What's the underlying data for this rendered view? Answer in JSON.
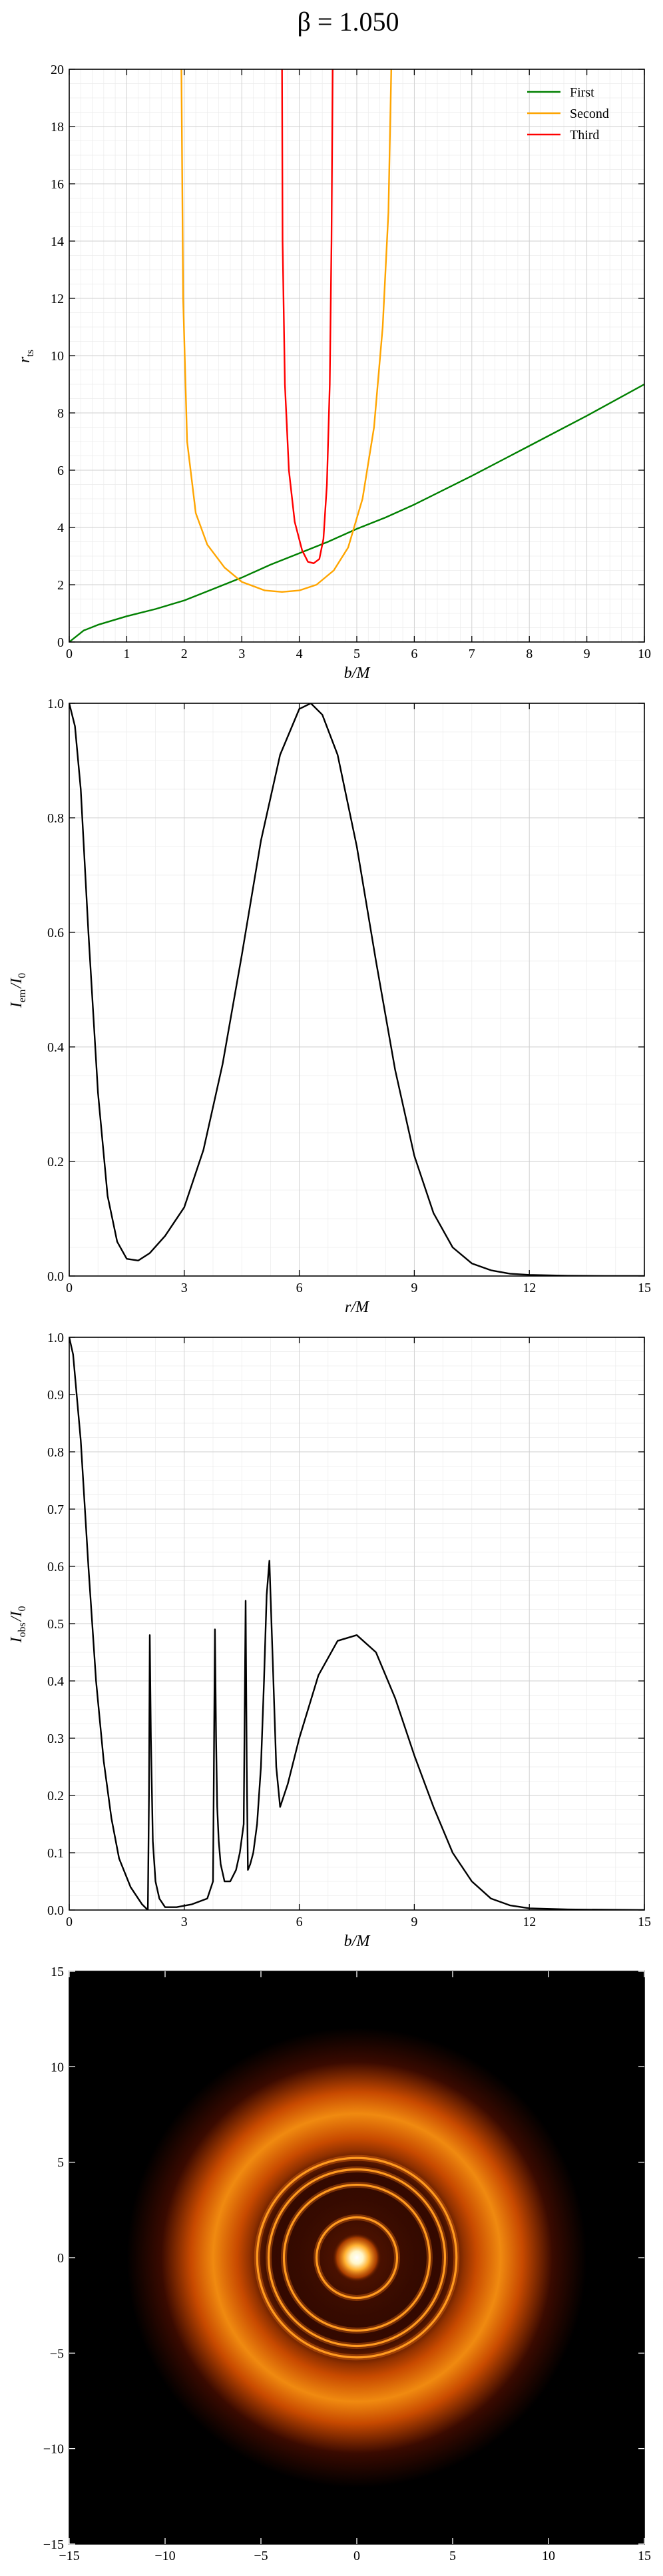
{
  "figure": {
    "title": "β = 1.050"
  },
  "chart_data": [
    {
      "type": "line",
      "xlabel": "b/M",
      "ylabel": "r_ts",
      "xlim": [
        0,
        10
      ],
      "ylim": [
        0,
        20
      ],
      "xticks": [
        "0",
        "1",
        "2",
        "3",
        "4",
        "5",
        "6",
        "7",
        "8",
        "9",
        "10"
      ],
      "yticks": [
        "0",
        "2",
        "4",
        "6",
        "8",
        "10",
        "12",
        "14",
        "16",
        "18",
        "20"
      ],
      "grid": true,
      "legend": "top-right",
      "series": [
        {
          "name": "First",
          "color": "#008000",
          "x": [
            0,
            0.25,
            0.5,
            1,
            1.5,
            2,
            2.5,
            3,
            3.5,
            4,
            4.5,
            5,
            5.5,
            6,
            7,
            8,
            9,
            10
          ],
          "y": [
            0,
            0.4,
            0.6,
            0.9,
            1.15,
            1.45,
            1.85,
            2.25,
            2.7,
            3.1,
            3.5,
            3.95,
            4.35,
            4.8,
            5.8,
            6.85,
            7.9,
            9.0
          ]
        },
        {
          "name": "Second",
          "color": "#FFA500",
          "x": [
            1.95,
            1.98,
            2.05,
            2.2,
            2.4,
            2.7,
            3.0,
            3.4,
            3.7,
            4.0,
            4.3,
            4.6,
            4.85,
            5.1,
            5.3,
            5.45,
            5.55,
            5.6
          ],
          "y": [
            20,
            12,
            7,
            4.5,
            3.4,
            2.6,
            2.1,
            1.8,
            1.75,
            1.8,
            2.0,
            2.5,
            3.3,
            5.0,
            7.5,
            11,
            15,
            20
          ]
        },
        {
          "name": "Third",
          "color": "#FF0000",
          "x": [
            3.7,
            3.71,
            3.75,
            3.82,
            3.92,
            4.05,
            4.15,
            4.25,
            4.35,
            4.42,
            4.48,
            4.53,
            4.56,
            4.58
          ],
          "y": [
            20,
            14,
            9,
            6,
            4.2,
            3.2,
            2.8,
            2.75,
            2.9,
            3.6,
            5.5,
            9,
            14,
            20
          ]
        }
      ]
    },
    {
      "type": "line",
      "xlabel": "r/M",
      "ylabel": "I_em/I_0",
      "xlim": [
        0,
        15
      ],
      "ylim": [
        0,
        1.0
      ],
      "xticks": [
        "0",
        "3",
        "6",
        "9",
        "12",
        "15"
      ],
      "yticks": [
        "0.0",
        "0.2",
        "0.4",
        "0.6",
        "0.8",
        "1.0"
      ],
      "grid": true,
      "series": [
        {
          "color": "#000000",
          "x": [
            0,
            0.15,
            0.3,
            0.5,
            0.75,
            1.0,
            1.25,
            1.5,
            1.8,
            2.1,
            2.5,
            3.0,
            3.5,
            4.0,
            4.5,
            5.0,
            5.5,
            6.0,
            6.3,
            6.6,
            7.0,
            7.5,
            8.0,
            8.5,
            9.0,
            9.5,
            10.0,
            10.5,
            11.0,
            11.5,
            12.0,
            13.0,
            14.0,
            15.0
          ],
          "y": [
            1.0,
            0.96,
            0.85,
            0.6,
            0.32,
            0.14,
            0.06,
            0.03,
            0.027,
            0.04,
            0.07,
            0.12,
            0.22,
            0.37,
            0.56,
            0.76,
            0.91,
            0.99,
            1.0,
            0.98,
            0.91,
            0.75,
            0.55,
            0.36,
            0.21,
            0.11,
            0.05,
            0.022,
            0.01,
            0.004,
            0.002,
            0.0005,
            0,
            0
          ]
        }
      ]
    },
    {
      "type": "line",
      "xlabel": "b/M",
      "ylabel": "I_obs/I_0",
      "xlim": [
        0,
        15
      ],
      "ylim": [
        0,
        1.0
      ],
      "xticks": [
        "0",
        "3",
        "6",
        "9",
        "12",
        "15"
      ],
      "yticks": [
        "0.0",
        "0.1",
        "0.2",
        "0.3",
        "0.4",
        "0.5",
        "0.6",
        "0.7",
        "0.8",
        "0.9",
        "1.0"
      ],
      "grid": true,
      "series": [
        {
          "color": "#000000",
          "x": [
            0,
            0.1,
            0.3,
            0.5,
            0.7,
            0.9,
            1.1,
            1.3,
            1.6,
            1.9,
            2.05,
            2.08,
            2.1,
            2.13,
            2.18,
            2.25,
            2.35,
            2.5,
            2.8,
            3.2,
            3.6,
            3.75,
            3.8,
            3.83,
            3.86,
            3.9,
            3.95,
            4.05,
            4.2,
            4.35,
            4.45,
            4.55,
            4.6,
            4.63,
            4.66,
            4.72,
            4.8,
            4.9,
            5.0,
            5.08,
            5.15,
            5.22,
            5.3,
            5.4,
            5.5,
            5.7,
            6.0,
            6.5,
            7.0,
            7.5,
            8.0,
            8.5,
            9.0,
            9.5,
            10.0,
            10.5,
            11.0,
            11.5,
            12.0,
            13.0,
            15.0
          ],
          "y": [
            1.0,
            0.97,
            0.82,
            0.6,
            0.4,
            0.26,
            0.16,
            0.09,
            0.04,
            0.01,
            0.0,
            0.2,
            0.48,
            0.3,
            0.12,
            0.05,
            0.02,
            0.005,
            0.005,
            0.01,
            0.02,
            0.05,
            0.49,
            0.3,
            0.18,
            0.12,
            0.08,
            0.05,
            0.05,
            0.07,
            0.1,
            0.15,
            0.54,
            0.25,
            0.07,
            0.08,
            0.1,
            0.15,
            0.25,
            0.4,
            0.55,
            0.61,
            0.45,
            0.25,
            0.18,
            0.22,
            0.3,
            0.41,
            0.47,
            0.48,
            0.45,
            0.37,
            0.27,
            0.18,
            0.1,
            0.05,
            0.02,
            0.008,
            0.003,
            0.001,
            0
          ]
        }
      ]
    },
    {
      "type": "heatmap",
      "xlim": [
        -15,
        15
      ],
      "ylim": [
        -15,
        15
      ],
      "xticks": [
        "−15",
        "−10",
        "−5",
        "0",
        "5",
        "10",
        "15"
      ],
      "yticks": [
        "−15",
        "−10",
        "−5",
        "0",
        "5",
        "10",
        "15"
      ],
      "colormap": "afmhot",
      "rings": [
        {
          "radius": 0.0,
          "intensity": 1.0,
          "kind": "core"
        },
        {
          "radius": 2.1,
          "intensity": 0.48,
          "kind": "thin"
        },
        {
          "radius": 3.8,
          "intensity": 0.49,
          "kind": "thin"
        },
        {
          "radius": 4.6,
          "intensity": 0.54,
          "kind": "thin"
        },
        {
          "radius": 5.2,
          "intensity": 0.61,
          "kind": "thin"
        },
        {
          "radius": 7.5,
          "intensity": 0.48,
          "kind": "broad"
        }
      ]
    }
  ]
}
